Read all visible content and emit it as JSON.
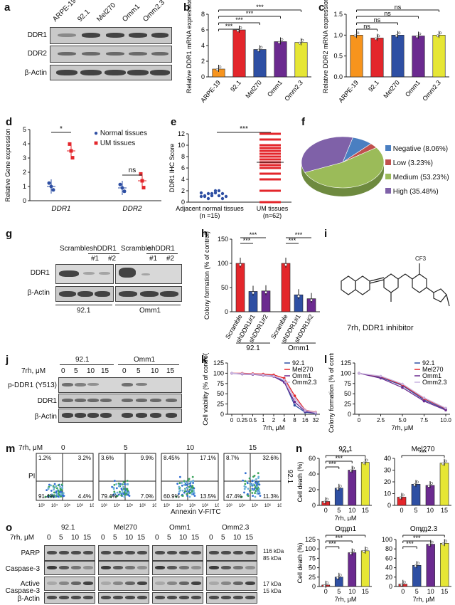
{
  "panel_labels": {
    "a": "a",
    "b": "b",
    "c": "c",
    "d": "d",
    "e": "e",
    "f": "f",
    "g": "g",
    "h": "h",
    "i": "i",
    "j": "j",
    "k": "k",
    "l": "l",
    "m": "m",
    "n": "n",
    "o": "o"
  },
  "cell_lines": [
    "ARPE-19",
    "92.1",
    "Mel270",
    "Omm1",
    "Omm2.3"
  ],
  "panel_a": {
    "rows": [
      "DDR1",
      "DDR2",
      "β-Actin"
    ]
  },
  "chart_data": [
    {
      "id": "b",
      "type": "bar",
      "categories": [
        "ARPE-19",
        "92.1",
        "Mel270",
        "Omm1",
        "Omm2.3"
      ],
      "values": [
        1.0,
        6.0,
        3.5,
        4.5,
        4.4
      ],
      "ylabel": "Relative DDR1 mRNA expression",
      "ylim": [
        0,
        8
      ],
      "yticks": [
        "0",
        "2",
        "4",
        "6",
        "8"
      ],
      "colors": [
        "#f7941d",
        "#e3262b",
        "#2e4fa3",
        "#6b2a8f",
        "#e6e635"
      ],
      "sig": [
        "***",
        "***",
        "***",
        "***"
      ]
    },
    {
      "id": "c",
      "type": "bar",
      "categories": [
        "ARPE-19",
        "92.1",
        "Mel270",
        "Omm1",
        "Omm2.3"
      ],
      "values": [
        1.0,
        0.93,
        1.0,
        0.98,
        1.0
      ],
      "ylabel": "Relative DDR2 mRNA expression",
      "ylim": [
        0,
        1.5
      ],
      "yticks": [
        "0.0",
        "0.5",
        "1.0",
        "1.5"
      ],
      "colors": [
        "#f7941d",
        "#e3262b",
        "#2e4fa3",
        "#6b2a8f",
        "#e6e635"
      ],
      "sig": [
        "ns",
        "ns",
        "ns",
        "ns"
      ]
    },
    {
      "id": "d",
      "type": "scatter",
      "categories": [
        "DDR1",
        "DDR2"
      ],
      "series": [
        {
          "name": "Normal tissues",
          "values": [
            1.0,
            0.9
          ]
        },
        {
          "name": "UM tissues",
          "values": [
            3.5,
            1.4
          ]
        }
      ],
      "ylabel": "Relative Gene expression",
      "ylim": [
        0,
        5
      ],
      "yticks": [
        "0",
        "1",
        "2",
        "3",
        "4",
        "5"
      ],
      "sig": [
        "*",
        "ns"
      ]
    },
    {
      "id": "e",
      "type": "scatter",
      "categories": [
        "Adjacent normal tissues\n(n =15)",
        "UM tissues\n(n=62)"
      ],
      "values": [
        1.5,
        7.0
      ],
      "ylabel": "DDR1 IHC Score",
      "ylim": [
        0,
        12
      ],
      "yticks": [
        "0",
        "2",
        "4",
        "6",
        "8",
        "10",
        "12"
      ],
      "sig": [
        "***"
      ]
    },
    {
      "id": "f",
      "type": "pie",
      "labels": [
        "Negative (8.06%)",
        "Low (3.23%)",
        "Medium (53.23%)",
        "High (35.48%)"
      ],
      "values": [
        8.06,
        3.23,
        53.23,
        35.48
      ],
      "colors": [
        "#4a7fc1",
        "#c0504d",
        "#9bbb59",
        "#7f61a8"
      ]
    },
    {
      "id": "h",
      "type": "bar",
      "categories": [
        "Scramble",
        "shDDR1#1",
        "shDDR1#2",
        "Scramble",
        "shDDR1#1",
        "shDDR1#2"
      ],
      "groups": [
        "92.1",
        "Omm1"
      ],
      "values": [
        100,
        42,
        43,
        100,
        35,
        27
      ],
      "ylabel": "Colony formation (% of control)",
      "ylim": [
        0,
        150
      ],
      "yticks": [
        "0",
        "50",
        "100",
        "150"
      ],
      "colors": [
        "#e3262b",
        "#2e4fa3",
        "#6b2a8f",
        "#e3262b",
        "#2e4fa3",
        "#6b2a8f"
      ],
      "sig": [
        "***",
        "***",
        "***",
        "***"
      ]
    },
    {
      "id": "k",
      "type": "line",
      "x": [
        0,
        0.25,
        0.5,
        1,
        2,
        4,
        8,
        16,
        32
      ],
      "xticks": [
        "0",
        "0.25",
        "0.5",
        "1",
        "2",
        "4",
        "8",
        "16",
        "32"
      ],
      "xlabel": "7rh, μM",
      "ylabel": "Cell viability (% of control)",
      "ylim": [
        0,
        125
      ],
      "yticks": [
        "0",
        "25",
        "50",
        "75",
        "100",
        "125"
      ],
      "series": [
        {
          "name": "92.1",
          "color": "#2e4fa3",
          "values": [
            100,
            99,
            98,
            97,
            94,
            80,
            22,
            5,
            2
          ]
        },
        {
          "name": "Mel270",
          "color": "#e3262b",
          "values": [
            100,
            100,
            99,
            98,
            96,
            88,
            45,
            10,
            5
          ]
        },
        {
          "name": "Omm1",
          "color": "#6b2a8f",
          "values": [
            100,
            98,
            97,
            95,
            92,
            78,
            30,
            7,
            3
          ]
        },
        {
          "name": "Omm2.3",
          "color": "#c8b4e0",
          "values": [
            100,
            99,
            98,
            96,
            93,
            84,
            38,
            9,
            4
          ]
        }
      ]
    },
    {
      "id": "l",
      "type": "line",
      "x": [
        0,
        2.5,
        5,
        7.5,
        10
      ],
      "xticks": [
        "0",
        "2.5",
        "5.0",
        "7.5",
        "10.0"
      ],
      "xlabel": "7rh, μM",
      "ylabel": "Colony formation (% of control)",
      "ylim": [
        0,
        125
      ],
      "yticks": [
        "0",
        "25",
        "50",
        "75",
        "100",
        "125"
      ],
      "series": [
        {
          "name": "92.1",
          "color": "#2e4fa3",
          "values": [
            100,
            90,
            70,
            35,
            12
          ]
        },
        {
          "name": "Mel270",
          "color": "#e3262b",
          "values": [
            100,
            92,
            72,
            38,
            14
          ]
        },
        {
          "name": "Omm1",
          "color": "#6b2a8f",
          "values": [
            100,
            88,
            65,
            32,
            10
          ]
        },
        {
          "name": "Omm2.3",
          "color": "#c8b4e0",
          "values": [
            100,
            93,
            74,
            40,
            15
          ]
        }
      ]
    },
    {
      "id": "n1",
      "type": "bar",
      "title": "92.1",
      "categories": [
        "0",
        "5",
        "10",
        "15"
      ],
      "values": [
        5,
        22,
        45,
        55
      ],
      "ylim": [
        0,
        60
      ],
      "yticks": [
        "0",
        "20",
        "40",
        "60"
      ],
      "xlabel": "7rh, μM",
      "ylabel": "Cell death (%)",
      "colors": [
        "#e3262b",
        "#2e4fa3",
        "#6b2a8f",
        "#e6e635"
      ],
      "sig": [
        "***",
        "***",
        "***"
      ]
    },
    {
      "id": "n2",
      "type": "bar",
      "title": "Mel270",
      "categories": [
        "0",
        "5",
        "10",
        "15"
      ],
      "values": [
        7,
        18,
        17,
        36
      ],
      "ylim": [
        0,
        40
      ],
      "yticks": [
        "0",
        "10",
        "20",
        "30",
        "40"
      ],
      "xlabel": "",
      "ylabel": "",
      "colors": [
        "#e3262b",
        "#2e4fa3",
        "#6b2a8f",
        "#e6e635"
      ],
      "sig": [
        "***"
      ]
    },
    {
      "id": "n3",
      "type": "bar",
      "title": "Omm1",
      "categories": [
        "0",
        "5",
        "10",
        "15"
      ],
      "values": [
        4,
        25,
        90,
        95
      ],
      "ylim": [
        0,
        125
      ],
      "yticks": [
        "0",
        "25",
        "50",
        "75",
        "100",
        "125"
      ],
      "xlabel": "7rh, μM",
      "ylabel": "Cell death (%)",
      "colors": [
        "#e3262b",
        "#2e4fa3",
        "#6b2a8f",
        "#e6e635"
      ],
      "sig": [
        "***",
        "***",
        "***"
      ]
    },
    {
      "id": "n4",
      "type": "bar",
      "title": "Omm2.3",
      "categories": [
        "0",
        "5",
        "10",
        "15"
      ],
      "values": [
        5,
        45,
        90,
        92
      ],
      "ylim": [
        0,
        100
      ],
      "yticks": [
        "0",
        "20",
        "40",
        "60",
        "80",
        "100"
      ],
      "xlabel": "7rh, μM",
      "ylabel": "",
      "colors": [
        "#e3262b",
        "#2e4fa3",
        "#6b2a8f",
        "#e6e635"
      ],
      "sig": [
        "***",
        "***",
        "***"
      ]
    }
  ],
  "panel_d_legend": [
    "Normal tissues",
    "UM tissues"
  ],
  "panel_e_sig": "***",
  "panel_g": {
    "groups": [
      "92.1",
      "Omm1"
    ],
    "top": [
      "Scramble",
      "shDDR1",
      "Scramble",
      "shDDR1"
    ],
    "sub": [
      "#1",
      "#2",
      "#1",
      "#2"
    ],
    "rows": [
      "DDR1",
      "β-Actin"
    ]
  },
  "panel_h_groups": [
    "92.1",
    "Omm1"
  ],
  "panel_i": {
    "caption": "7rh, DDR1 inhibitor",
    "cf3": "CF3"
  },
  "panel_j": {
    "groups": [
      "92.1",
      "Omm1"
    ],
    "dose_label": "7rh, μM",
    "doses": [
      "0",
      "5",
      "10",
      "15",
      "0",
      "5",
      "10",
      "15"
    ],
    "rows": [
      "p-DDR1 (Y513)",
      "DDR1",
      "β-Actin"
    ]
  },
  "panel_m": {
    "dose_label": "7rh, μM",
    "doses": [
      "0",
      "5",
      "10",
      "15"
    ],
    "quadrants": [
      [
        "1.2%",
        "3.2%",
        "91.4%",
        "4.4%"
      ],
      [
        "3.6%",
        "9.9%",
        "79.4%",
        "7.0%"
      ],
      [
        "8.45%",
        "17.1%",
        "60.9%",
        "13.5%"
      ],
      [
        "8.7%",
        "32.6%",
        "47.4%",
        "11.3%"
      ]
    ],
    "ylab": "PI",
    "xlab": "Annexin V-FITC",
    "cell": "92.1",
    "xticks": [
      "10³",
      "10⁴",
      "10⁵",
      "10⁶",
      "10⁷"
    ]
  },
  "panel_o": {
    "groups": [
      "92.1",
      "Mel270",
      "Omm1",
      "Omm2.3"
    ],
    "dose_label": "7rh, μM",
    "doses": [
      "0",
      "5",
      "10",
      "15"
    ],
    "rows": [
      "PARP",
      "Caspase-3",
      "Active Caspase-3",
      "β-Actin"
    ],
    "kda": [
      "116 kDa",
      "85 kDa",
      "17 kDa",
      "15 kDa"
    ]
  }
}
